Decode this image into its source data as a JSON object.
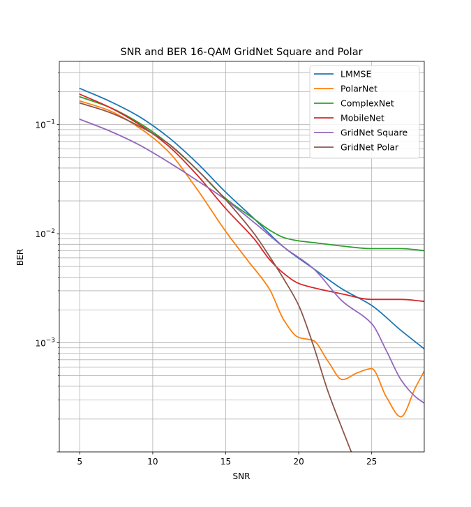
{
  "chart_data": {
    "type": "line",
    "title": "SNR and BER 16-QAM GridNet Square and Polar",
    "xlabel": "SNR",
    "ylabel": "BER",
    "xlim": [
      3.6,
      28.6
    ],
    "ylim": [
      0.0001,
      0.38
    ],
    "yscale": "log",
    "xticks": [
      5,
      10,
      15,
      20,
      25
    ],
    "yticks": [
      {
        "value": 0.1,
        "base": "10",
        "exp": "−1"
      },
      {
        "value": 0.01,
        "base": "10",
        "exp": "−2"
      },
      {
        "value": 0.001,
        "base": "10",
        "exp": "−3"
      }
    ],
    "grid": true,
    "legend_position": "upper right",
    "series": [
      {
        "name": "LMMSE",
        "color": "#1f77b4",
        "x": [
          5,
          7,
          9,
          11,
          13,
          15,
          17,
          19,
          21,
          23,
          25,
          27,
          28.6
        ],
        "y": [
          0.215,
          0.165,
          0.12,
          0.078,
          0.045,
          0.024,
          0.0135,
          0.0075,
          0.0048,
          0.0031,
          0.0022,
          0.0013,
          0.00088
        ]
      },
      {
        "name": "PolarNet",
        "color": "#ff7f0e",
        "x": [
          5,
          7,
          9,
          11,
          13,
          15,
          16.5,
          18,
          19,
          20,
          21,
          22,
          23,
          24,
          25,
          26,
          27,
          28,
          28.6
        ],
        "y": [
          0.165,
          0.135,
          0.095,
          0.058,
          0.026,
          0.0105,
          0.0057,
          0.0031,
          0.0016,
          0.00112,
          0.00105,
          0.00068,
          0.00046,
          0.00053,
          0.00058,
          0.00032,
          0.00021,
          0.00039,
          0.00055
        ]
      },
      {
        "name": "ComplexNet",
        "color": "#2ca02c",
        "x": [
          5,
          7,
          9,
          11,
          13,
          15,
          17,
          18,
          19,
          20,
          21,
          23,
          25,
          27,
          28.6
        ],
        "y": [
          0.18,
          0.145,
          0.105,
          0.068,
          0.039,
          0.021,
          0.0135,
          0.0108,
          0.0092,
          0.0086,
          0.0083,
          0.0077,
          0.0073,
          0.0073,
          0.007
        ]
      },
      {
        "name": "MobileNet",
        "color": "#d62728",
        "x": [
          5,
          7,
          9,
          11,
          13,
          15,
          17,
          18,
          19,
          20,
          21,
          23,
          25,
          27,
          28.6
        ],
        "y": [
          0.19,
          0.145,
          0.102,
          0.065,
          0.035,
          0.017,
          0.0088,
          0.0058,
          0.0043,
          0.0035,
          0.0032,
          0.0028,
          0.0025,
          0.0025,
          0.0024
        ]
      },
      {
        "name": "GridNet Square",
        "color": "#9467bd",
        "x": [
          5,
          7,
          9,
          11,
          13,
          15,
          17,
          19,
          21,
          23,
          25,
          26,
          27,
          28,
          28.6
        ],
        "y": [
          0.112,
          0.088,
          0.066,
          0.046,
          0.031,
          0.0205,
          0.0125,
          0.0075,
          0.0048,
          0.0024,
          0.0015,
          0.00085,
          0.00046,
          0.00032,
          0.00028
        ]
      },
      {
        "name": "GridNet Polar",
        "color": "#8c564b",
        "x": [
          5,
          7,
          9,
          11,
          13,
          15,
          17,
          18,
          19,
          20,
          21,
          22,
          23,
          23.6
        ],
        "y": [
          0.158,
          0.13,
          0.098,
          0.068,
          0.039,
          0.0205,
          0.0098,
          0.0062,
          0.0038,
          0.0022,
          0.00095,
          0.00036,
          0.00016,
          0.0001
        ]
      }
    ]
  }
}
